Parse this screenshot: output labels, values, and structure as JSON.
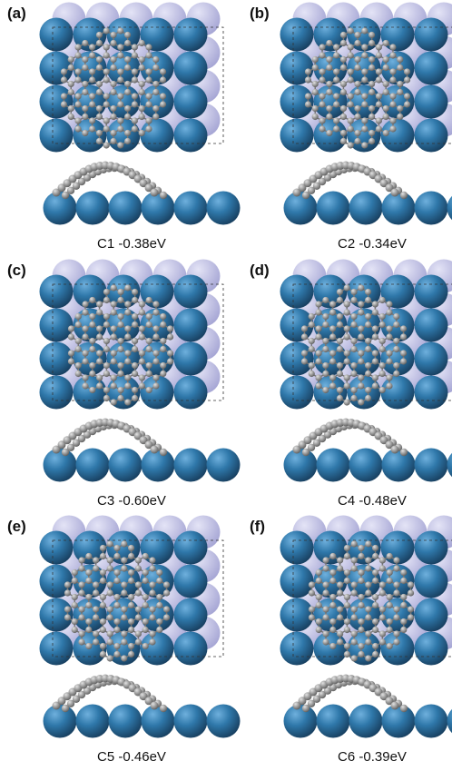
{
  "panels": [
    {
      "label": "(a)",
      "caption": "C1  -0.38eV"
    },
    {
      "label": "(b)",
      "caption": "C2  -0.34eV"
    },
    {
      "label": "(c)",
      "caption": "C3  -0.60eV"
    },
    {
      "label": "(d)",
      "caption": "C4  -0.48eV"
    },
    {
      "label": "(e)",
      "caption": "C5  -0.46eV"
    },
    {
      "label": "(f)",
      "caption": "C6  -0.39eV"
    }
  ]
}
